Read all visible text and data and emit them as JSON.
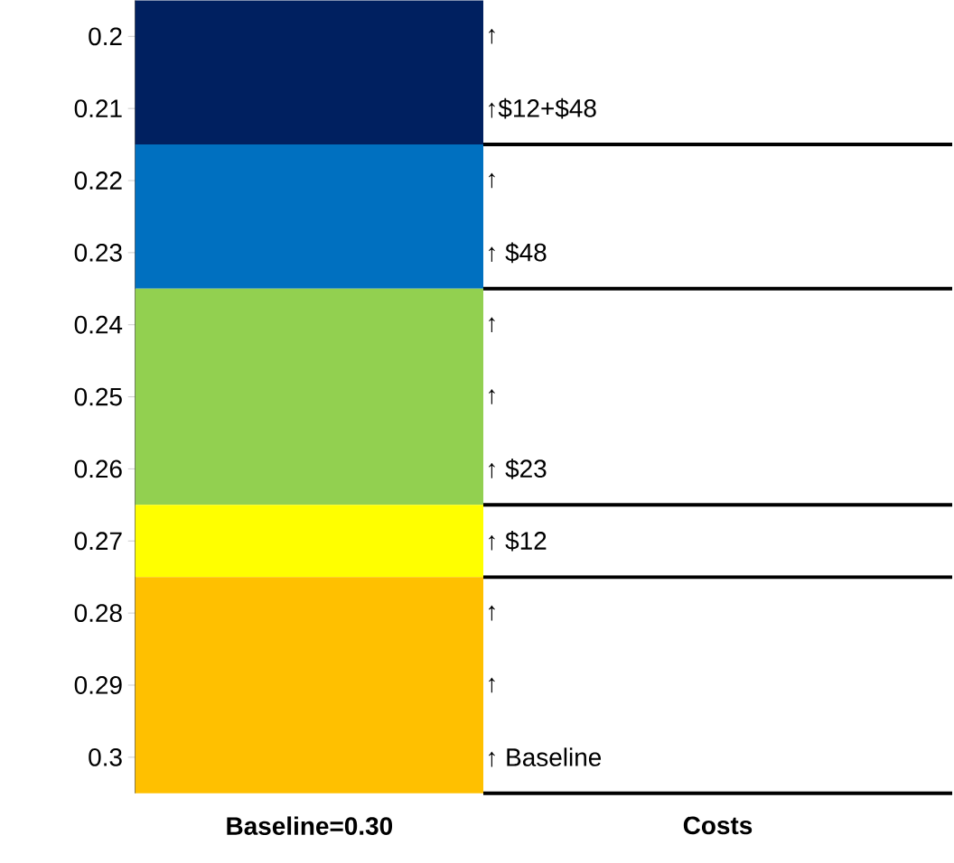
{
  "chart_data": {
    "type": "bar",
    "categories": [
      "Baseline=0.30",
      "Costs"
    ],
    "values": [
      null,
      null
    ],
    "ylim": [
      0.305,
      0.195
    ],
    "yticks": [
      0.2,
      0.21,
      0.22,
      0.23,
      0.24,
      0.25,
      0.26,
      0.27,
      0.28,
      0.29,
      0.3
    ],
    "bands": [
      {
        "axis": "y",
        "from": 0.195,
        "to": 0.215,
        "color": "#002060"
      },
      {
        "axis": "y",
        "from": 0.215,
        "to": 0.235,
        "color": "#0070c0"
      },
      {
        "axis": "y",
        "from": 0.235,
        "to": 0.265,
        "color": "#92d050"
      },
      {
        "axis": "y",
        "from": 0.265,
        "to": 0.275,
        "color": "#ffff00"
      },
      {
        "axis": "y",
        "from": 0.275,
        "to": 0.305,
        "color": "#ffc000"
      }
    ],
    "annotations": [
      "↑",
      "↑$12+$48",
      "↑",
      "↑ $48",
      "↑",
      "↑",
      "↑  $23",
      "↑ $12",
      "↑",
      "↑",
      "↑ Baseline"
    ],
    "ref_lines": [
      {
        "axis": "y",
        "value": 0.215,
        "color": "#000000"
      },
      {
        "axis": "y",
        "value": 0.235,
        "color": "#000000"
      },
      {
        "axis": "y",
        "value": 0.265,
        "color": "#000000"
      },
      {
        "axis": "y",
        "value": 0.275,
        "color": "#000000"
      },
      {
        "axis": "y",
        "value": 0.305,
        "color": "#000000"
      }
    ]
  }
}
